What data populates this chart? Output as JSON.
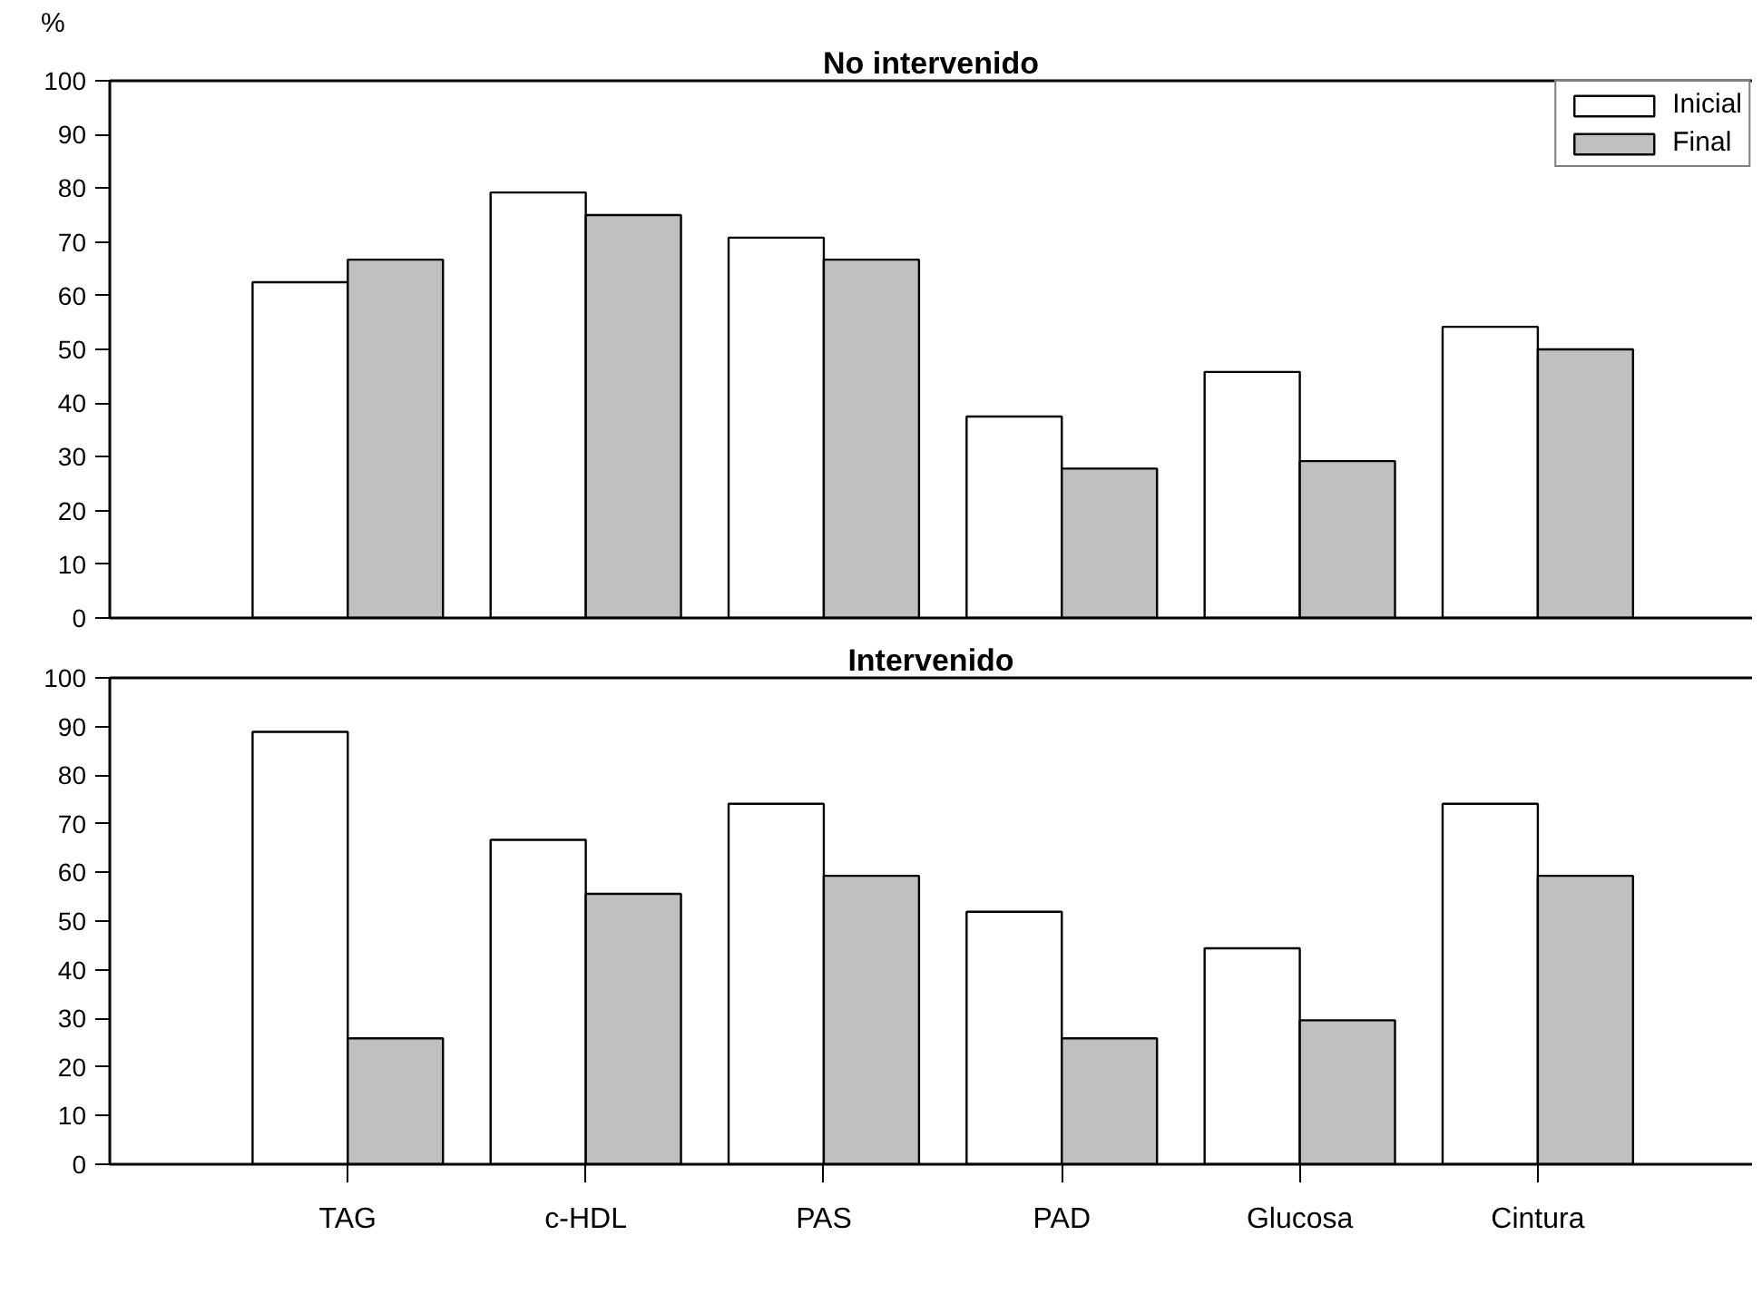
{
  "chart_data": [
    {
      "type": "bar",
      "title": "No intervenido",
      "ylabel": "%",
      "tick_labels": "y",
      "legend": "top right",
      "ylim": [
        0,
        100
      ],
      "yticks": [
        0,
        10,
        20,
        30,
        40,
        50,
        60,
        70,
        80,
        90,
        100
      ],
      "series": [
        {
          "name": "Inicial",
          "color": "#ffffff",
          "values": [
            62.5,
            79.2,
            70.8,
            37.5,
            45.8,
            54.2
          ]
        },
        {
          "name": "Final",
          "color": "#c0c0c0",
          "values": [
            66.7,
            75.0,
            66.7,
            27.8,
            29.2,
            50.0
          ]
        }
      ]
    },
    {
      "type": "bar",
      "title": "Intervenido",
      "categories": [
        "TAG",
        "c-HDL",
        "PAS",
        "PAD",
        "Glucosa",
        "Cintura"
      ],
      "ylim": [
        0,
        100
      ],
      "yticks": [
        0,
        10,
        20,
        30,
        40,
        50,
        60,
        70,
        80,
        90,
        100
      ],
      "series": [
        {
          "color": "#ffffff",
          "values": [
            88.9,
            66.7,
            74.1,
            51.9,
            44.4,
            74.1
          ]
        },
        {
          "color": "#c0c0c0",
          "values": [
            25.9,
            55.6,
            59.3,
            25.9,
            29.6,
            59.3
          ]
        }
      ]
    }
  ]
}
